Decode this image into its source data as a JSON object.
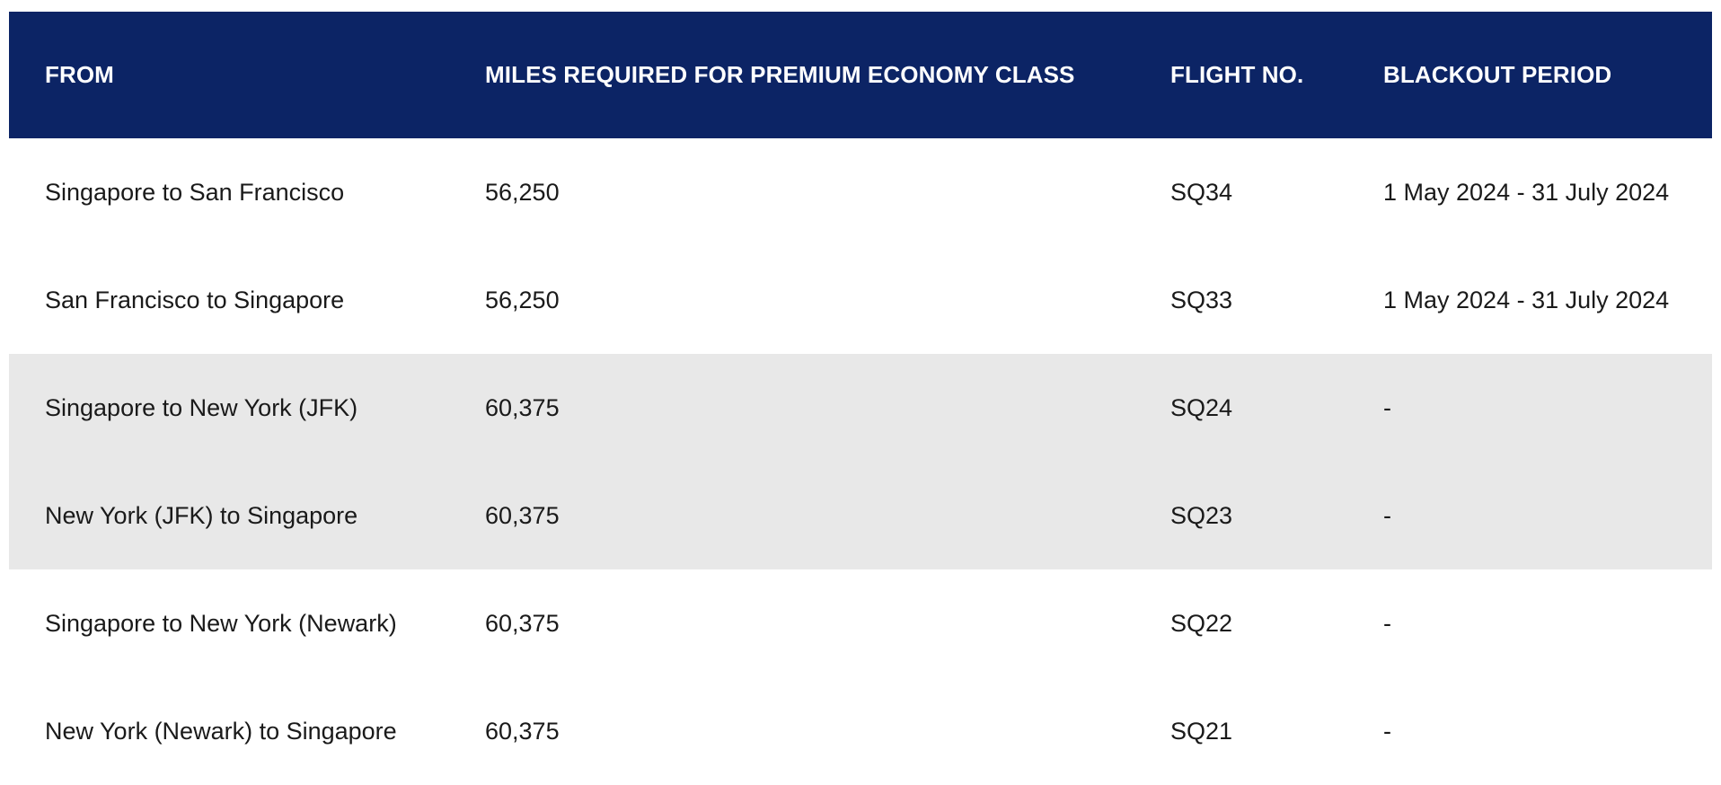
{
  "table": {
    "headers": {
      "from": "FROM",
      "miles": "MILES REQUIRED FOR PREMIUM ECONOMY CLASS",
      "flight": "FLIGHT NO.",
      "blackout": "BLACKOUT PERIOD"
    },
    "rows": [
      {
        "from": "Singapore to San Francisco",
        "miles": "56,250",
        "flight": "SQ34",
        "blackout": "1 May 2024 - 31 July 2024",
        "shaded": false
      },
      {
        "from": "San Francisco to Singapore",
        "miles": "56,250",
        "flight": "SQ33",
        "blackout": "1 May 2024 - 31 July 2024",
        "shaded": false
      },
      {
        "from": "Singapore to New York (JFK)",
        "miles": "60,375",
        "flight": "SQ24",
        "blackout": "-",
        "shaded": true
      },
      {
        "from": "New York (JFK) to Singapore",
        "miles": "60,375",
        "flight": "SQ23",
        "blackout": "-",
        "shaded": true
      },
      {
        "from": "Singapore to New York (Newark)",
        "miles": "60,375",
        "flight": "SQ22",
        "blackout": "-",
        "shaded": false
      },
      {
        "from": "New York (Newark) to Singapore",
        "miles": "60,375",
        "flight": "SQ21",
        "blackout": "-",
        "shaded": false
      }
    ]
  },
  "colors": {
    "header_bg": "#0c2465",
    "header_text": "#ffffff",
    "shaded_row_bg": "#e8e8e8",
    "body_text": "#1a1a1a"
  }
}
